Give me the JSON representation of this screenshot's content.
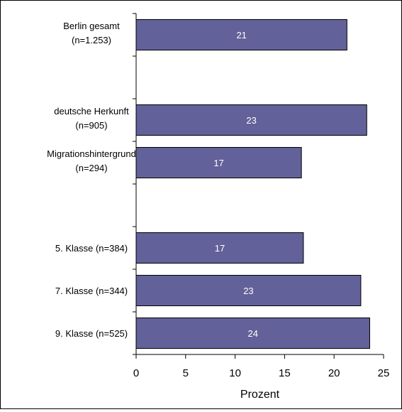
{
  "chart_data": {
    "type": "bar",
    "orientation": "horizontal",
    "categories": [
      [
        "Berlin gesamt",
        "(n=1.253)"
      ],
      [
        "",
        ""
      ],
      [
        "deutsche Herkunft",
        "(n=905)"
      ],
      [
        "Migrationshintergrund",
        "(n=294)"
      ],
      [
        "",
        ""
      ],
      [
        "5. Klasse (n=384)"
      ],
      [
        "7. Klasse (n=344)"
      ],
      [
        "9. Klasse (n=525)"
      ]
    ],
    "values": [
      21.3,
      null,
      23.3,
      16.7,
      null,
      16.9,
      22.7,
      23.6
    ],
    "value_labels": [
      "21",
      "",
      "23",
      "17",
      "",
      "17",
      "23",
      "24"
    ],
    "xlabel": "Prozent",
    "xlim": [
      0,
      25
    ],
    "xticks": [
      "0",
      "5",
      "10",
      "15",
      "20",
      "25"
    ],
    "grid": false,
    "colors": {
      "bar": "#636199",
      "bar_stroke": "#000000",
      "value_text": "#ffffff"
    }
  }
}
